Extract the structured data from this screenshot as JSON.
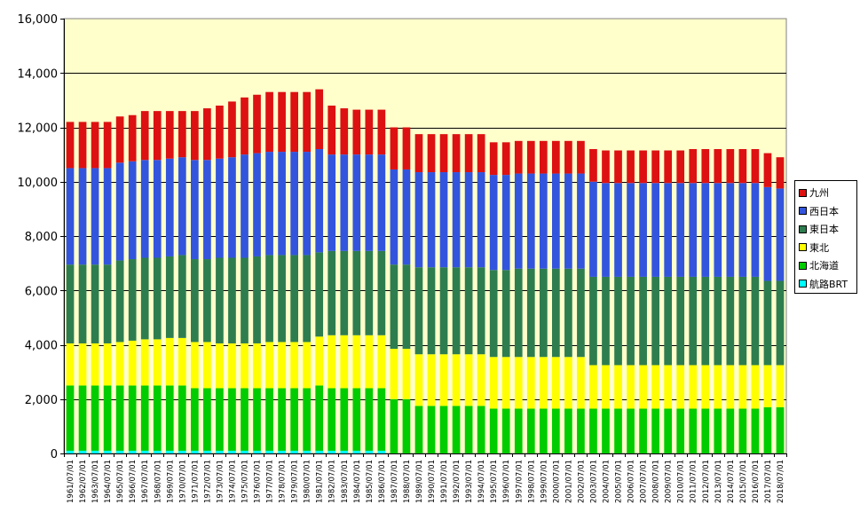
{
  "chart_data": {
    "type": "bar",
    "stacked": true,
    "categories": [
      "1961/07/01",
      "1962/07/01",
      "1963/07/01",
      "1964/07/01",
      "1965/07/01",
      "1966/07/01",
      "1967/07/01",
      "1968/07/01",
      "1969/07/01",
      "1970/07/01",
      "1971/07/01",
      "1972/07/01",
      "1973/07/01",
      "1974/07/01",
      "1975/07/01",
      "1976/07/01",
      "1977/07/01",
      "1978/07/01",
      "1979/07/01",
      "1980/07/01",
      "1981/07/01",
      "1982/07/01",
      "1983/07/01",
      "1984/07/01",
      "1985/07/01",
      "1986/07/01",
      "1987/07/01",
      "1988/07/01",
      "1989/07/01",
      "1990/07/01",
      "1991/07/01",
      "1992/07/01",
      "1993/07/01",
      "1994/07/01",
      "1995/07/01",
      "1996/07/01",
      "1997/07/01",
      "1998/07/01",
      "1999/07/01",
      "2000/07/01",
      "2001/07/01",
      "2002/07/01",
      "2003/07/01",
      "2004/07/01",
      "2005/07/01",
      "2006/07/01",
      "2007/07/01",
      "2008/07/01",
      "2009/07/01",
      "2010/07/01",
      "2011/07/01",
      "2012/07/01",
      "2013/07/01",
      "2014/07/01",
      "2015/07/01",
      "2016/07/01",
      "2017/07/01",
      "2018/07/01"
    ],
    "series": [
      {
        "name": "航路BRT",
        "color": "#00FFFF",
        "values": [
          100,
          100,
          100,
          100,
          100,
          100,
          100,
          100,
          100,
          100,
          100,
          100,
          100,
          100,
          100,
          100,
          100,
          100,
          100,
          100,
          100,
          100,
          100,
          100,
          100,
          100,
          0,
          0,
          0,
          0,
          0,
          0,
          0,
          0,
          0,
          0,
          0,
          0,
          0,
          0,
          0,
          0,
          0,
          0,
          0,
          0,
          0,
          0,
          0,
          0,
          0,
          0,
          0,
          0,
          0,
          0,
          0,
          0
        ]
      },
      {
        "name": "北海道",
        "color": "#00CC00",
        "values": [
          2400,
          2400,
          2400,
          2400,
          2400,
          2400,
          2400,
          2400,
          2400,
          2400,
          2300,
          2300,
          2300,
          2300,
          2300,
          2300,
          2300,
          2300,
          2300,
          2300,
          2400,
          2300,
          2300,
          2300,
          2300,
          2300,
          2000,
          2000,
          1750,
          1750,
          1750,
          1750,
          1750,
          1750,
          1650,
          1650,
          1650,
          1650,
          1650,
          1650,
          1650,
          1650,
          1650,
          1650,
          1650,
          1650,
          1650,
          1650,
          1650,
          1650,
          1650,
          1650,
          1650,
          1650,
          1650,
          1650,
          1700,
          1700
        ]
      },
      {
        "name": "東北",
        "color": "#FFFF00",
        "values": [
          1550,
          1550,
          1550,
          1550,
          1600,
          1650,
          1700,
          1700,
          1750,
          1750,
          1700,
          1700,
          1650,
          1650,
          1650,
          1650,
          1700,
          1700,
          1700,
          1700,
          1800,
          1950,
          1950,
          1950,
          1950,
          1950,
          1850,
          1850,
          1900,
          1900,
          1900,
          1900,
          1900,
          1900,
          1900,
          1900,
          1900,
          1900,
          1900,
          1900,
          1900,
          1900,
          1600,
          1600,
          1600,
          1600,
          1600,
          1600,
          1600,
          1600,
          1600,
          1600,
          1600,
          1600,
          1600,
          1600,
          1550,
          1550
        ]
      },
      {
        "name": "東日本",
        "color": "#2E7D4F",
        "values": [
          2900,
          2900,
          2900,
          2900,
          3000,
          3000,
          3000,
          3000,
          3000,
          3050,
          3050,
          3050,
          3150,
          3150,
          3150,
          3200,
          3200,
          3200,
          3200,
          3200,
          3100,
          3100,
          3100,
          3100,
          3100,
          3100,
          3100,
          3100,
          3200,
          3200,
          3200,
          3200,
          3200,
          3200,
          3200,
          3200,
          3250,
          3250,
          3250,
          3250,
          3250,
          3250,
          3250,
          3250,
          3250,
          3250,
          3250,
          3250,
          3250,
          3250,
          3250,
          3250,
          3250,
          3250,
          3250,
          3250,
          3100,
          3100
        ]
      },
      {
        "name": "西日本",
        "color": "#3355DD",
        "values": [
          3550,
          3550,
          3550,
          3550,
          3600,
          3600,
          3600,
          3600,
          3600,
          3600,
          3650,
          3650,
          3650,
          3700,
          3800,
          3800,
          3800,
          3800,
          3800,
          3800,
          3800,
          3550,
          3550,
          3550,
          3550,
          3550,
          3500,
          3500,
          3500,
          3500,
          3500,
          3500,
          3500,
          3500,
          3500,
          3500,
          3500,
          3500,
          3500,
          3500,
          3500,
          3500,
          3500,
          3450,
          3450,
          3450,
          3450,
          3450,
          3450,
          3450,
          3450,
          3450,
          3450,
          3450,
          3450,
          3450,
          3450,
          3400
        ]
      },
      {
        "name": "九州",
        "color": "#DD1111",
        "values": [
          1700,
          1700,
          1700,
          1700,
          1700,
          1700,
          1800,
          1800,
          1750,
          1700,
          1800,
          1900,
          1950,
          2050,
          2100,
          2150,
          2200,
          2200,
          2200,
          2200,
          2200,
          1800,
          1700,
          1650,
          1650,
          1650,
          1550,
          1550,
          1400,
          1400,
          1400,
          1400,
          1400,
          1400,
          1200,
          1200,
          1200,
          1200,
          1200,
          1200,
          1200,
          1200,
          1200,
          1200,
          1200,
          1200,
          1200,
          1200,
          1200,
          1200,
          1250,
          1250,
          1250,
          1250,
          1250,
          1250,
          1250,
          1150
        ]
      }
    ],
    "ylim": [
      0,
      16000
    ],
    "yticks": [
      "0",
      "2,000",
      "4,000",
      "6,000",
      "8,000",
      "10,000",
      "12,000",
      "14,000",
      "16,000"
    ],
    "ytick_values": [
      0,
      2000,
      4000,
      6000,
      8000,
      10000,
      12000,
      14000,
      16000
    ],
    "grid": true,
    "legend_position": "right",
    "legend_order": [
      "九州",
      "西日本",
      "東日本",
      "東北",
      "北海道",
      "航路BRT"
    ],
    "plot_background": "#FFFFCC"
  }
}
